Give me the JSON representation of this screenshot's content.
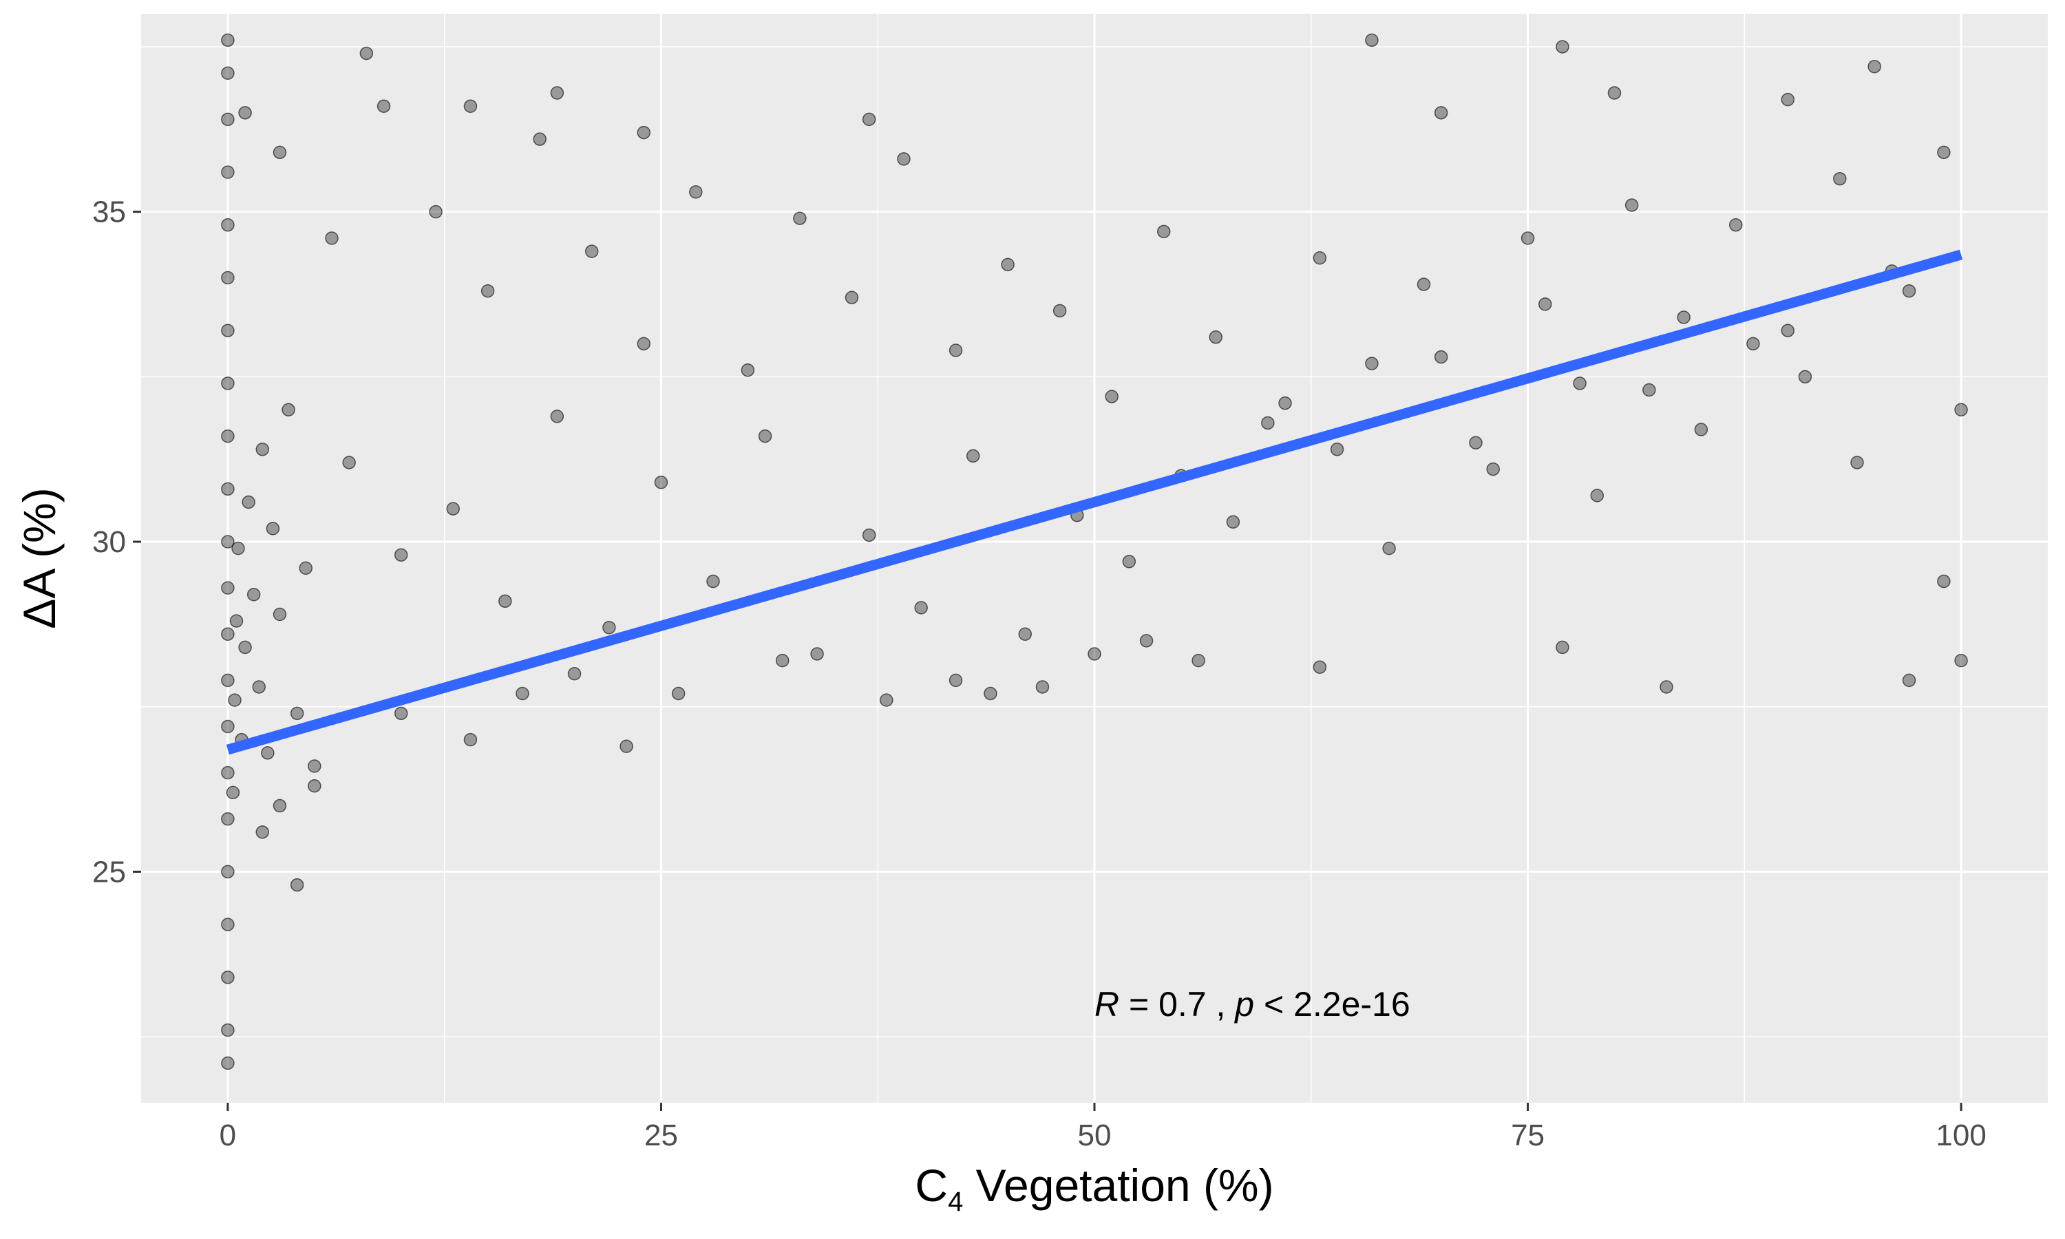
{
  "chart_data": {
    "type": "scatter",
    "title": "",
    "xlabel": {
      "prefix": "C",
      "subscript": "4",
      "suffix": " Vegetation (%)"
    },
    "ylabel": "ΔA (%)",
    "xlim": [
      -5,
      105
    ],
    "ylim": [
      21.5,
      38.0
    ],
    "x_ticks": [
      0,
      25,
      50,
      75,
      100
    ],
    "y_ticks": [
      25,
      30,
      35
    ],
    "x_tick_labels": [
      "0",
      "25",
      "50",
      "75",
      "100"
    ],
    "y_tick_labels": [
      "25",
      "30",
      "35"
    ],
    "grid": true,
    "background": "#ebebeb",
    "grid_color": "#ffffff",
    "point_color": "#000000",
    "point_alpha": 0.35,
    "fit_line": {
      "x": [
        0,
        100
      ],
      "y": [
        26.85,
        34.35
      ],
      "color": "#3366ff"
    },
    "annotation": {
      "r_sym": "R",
      "r_text": " = 0.7 , ",
      "p_sym": "p",
      "p_text": " < 2.2e-16",
      "x": 50,
      "y": 23.0
    },
    "series": [
      {
        "values_description_note": "",
        "points": [
          [
            0,
            22.1
          ],
          [
            0,
            22.6
          ],
          [
            0,
            23.4
          ],
          [
            0,
            24.2
          ],
          [
            0,
            25.0
          ],
          [
            0,
            25.8
          ],
          [
            0,
            26.5
          ],
          [
            0,
            27.2
          ],
          [
            0,
            27.9
          ],
          [
            0,
            28.6
          ],
          [
            0,
            29.3
          ],
          [
            0,
            30.0
          ],
          [
            0,
            30.8
          ],
          [
            0,
            31.6
          ],
          [
            0,
            32.4
          ],
          [
            0,
            33.2
          ],
          [
            0,
            34.0
          ],
          [
            0,
            34.8
          ],
          [
            0,
            35.6
          ],
          [
            0,
            36.4
          ],
          [
            0,
            37.1
          ],
          [
            0,
            37.6
          ],
          [
            0.3,
            26.2
          ],
          [
            0.4,
            27.6
          ],
          [
            0.5,
            28.8
          ],
          [
            0.6,
            29.9
          ],
          [
            0.8,
            27.0
          ],
          [
            1.0,
            28.4
          ],
          [
            1.2,
            30.6
          ],
          [
            1.5,
            29.2
          ],
          [
            1.8,
            27.8
          ],
          [
            2.0,
            31.4
          ],
          [
            2.3,
            26.8
          ],
          [
            2.6,
            30.2
          ],
          [
            3.0,
            28.9
          ],
          [
            3.5,
            32.0
          ],
          [
            4.0,
            27.4
          ],
          [
            4.5,
            29.6
          ],
          [
            5.0,
            26.3
          ],
          [
            1,
            36.5
          ],
          [
            3,
            35.9
          ],
          [
            6,
            34.6
          ],
          [
            9,
            36.6
          ],
          [
            12,
            35.0
          ],
          [
            15,
            33.8
          ],
          [
            18,
            36.1
          ],
          [
            21,
            34.4
          ],
          [
            24,
            33.0
          ],
          [
            27,
            35.3
          ],
          [
            30,
            32.6
          ],
          [
            33,
            34.9
          ],
          [
            36,
            33.7
          ],
          [
            39,
            35.8
          ],
          [
            42,
            32.9
          ],
          [
            45,
            34.2
          ],
          [
            48,
            33.5
          ],
          [
            51,
            32.2
          ],
          [
            54,
            34.7
          ],
          [
            57,
            33.1
          ],
          [
            60,
            31.8
          ],
          [
            63,
            34.3
          ],
          [
            66,
            32.7
          ],
          [
            69,
            33.9
          ],
          [
            72,
            31.5
          ],
          [
            75,
            34.6
          ],
          [
            78,
            32.4
          ],
          [
            81,
            35.1
          ],
          [
            84,
            33.4
          ],
          [
            87,
            34.8
          ],
          [
            90,
            33.2
          ],
          [
            93,
            35.5
          ],
          [
            96,
            34.1
          ],
          [
            99,
            35.9
          ],
          [
            7,
            31.2
          ],
          [
            10,
            29.8
          ],
          [
            13,
            30.5
          ],
          [
            16,
            29.1
          ],
          [
            19,
            31.9
          ],
          [
            22,
            28.7
          ],
          [
            25,
            30.9
          ],
          [
            28,
            29.4
          ],
          [
            31,
            31.6
          ],
          [
            34,
            28.3
          ],
          [
            37,
            30.1
          ],
          [
            40,
            29.0
          ],
          [
            43,
            31.3
          ],
          [
            46,
            28.6
          ],
          [
            49,
            30.4
          ],
          [
            52,
            29.7
          ],
          [
            55,
            31.0
          ],
          [
            58,
            30.3
          ],
          [
            61,
            32.1
          ],
          [
            64,
            31.4
          ],
          [
            67,
            29.9
          ],
          [
            70,
            32.8
          ],
          [
            73,
            31.1
          ],
          [
            76,
            33.6
          ],
          [
            79,
            30.7
          ],
          [
            82,
            32.3
          ],
          [
            85,
            31.7
          ],
          [
            88,
            33.0
          ],
          [
            91,
            32.5
          ],
          [
            94,
            31.2
          ],
          [
            97,
            33.8
          ],
          [
            100,
            32.0
          ],
          [
            20,
            28.0
          ],
          [
            26,
            27.7
          ],
          [
            32,
            28.2
          ],
          [
            38,
            27.6
          ],
          [
            42,
            27.9
          ],
          [
            44,
            27.7
          ],
          [
            47,
            27.8
          ],
          [
            50,
            28.3
          ],
          [
            53,
            28.5
          ],
          [
            56,
            28.2
          ],
          [
            63,
            28.1
          ],
          [
            77,
            28.4
          ],
          [
            83,
            27.8
          ],
          [
            100,
            28.2
          ],
          [
            99,
            29.4
          ],
          [
            97,
            27.9
          ],
          [
            66,
            37.6
          ],
          [
            77,
            37.5
          ],
          [
            70,
            36.5
          ],
          [
            80,
            36.8
          ],
          [
            90,
            36.7
          ],
          [
            95,
            37.2
          ],
          [
            37,
            36.4
          ],
          [
            24,
            36.2
          ],
          [
            8,
            37.4
          ],
          [
            19,
            36.8
          ],
          [
            14,
            36.6
          ],
          [
            4,
            24.8
          ],
          [
            2,
            25.6
          ],
          [
            3,
            26.0
          ],
          [
            5,
            26.6
          ],
          [
            10,
            27.4
          ],
          [
            14,
            27.0
          ],
          [
            17,
            27.7
          ],
          [
            23,
            26.9
          ]
        ]
      }
    ]
  }
}
